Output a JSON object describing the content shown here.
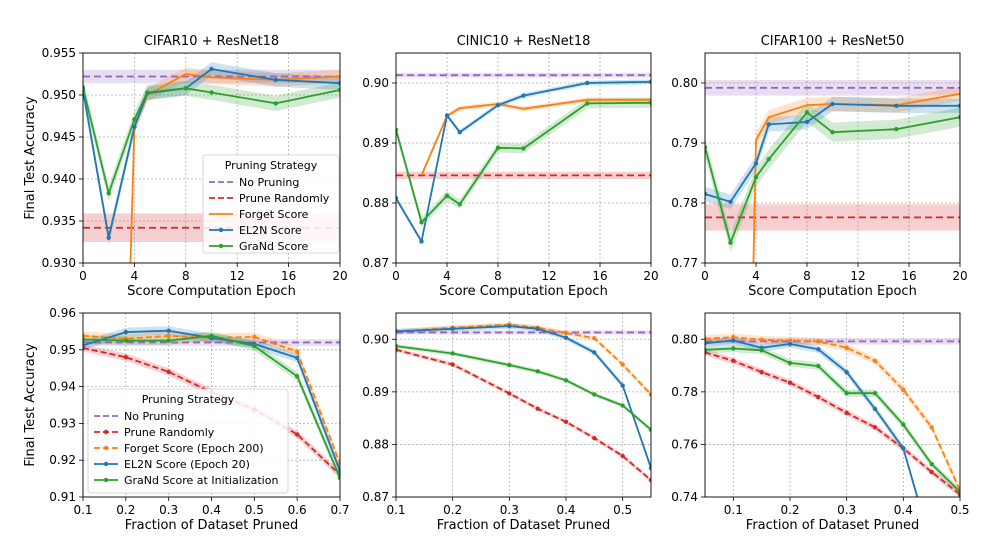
{
  "figure": {
    "strategies": {
      "none": {
        "color": "#9467bd",
        "dash": "7,4"
      },
      "random": {
        "color": "#d62728",
        "dash": "7,4"
      },
      "forget": {
        "color": "#ff7f0e"
      },
      "el2n": {
        "color": "#1f77b4"
      },
      "grand": {
        "color": "#2ca02c"
      }
    }
  },
  "chart_data": [
    {
      "type": "line",
      "title": "CIFAR10 + ResNet18",
      "xlabel": "Score Computation Epoch",
      "ylabel": "Final Test Accuracy",
      "xlim": [
        0,
        20
      ],
      "ylim": [
        0.93,
        0.955
      ],
      "xticks": [
        0,
        4,
        8,
        12,
        16,
        20
      ],
      "xtick_labels": [
        "0",
        "4",
        "8",
        "12",
        "16",
        "20"
      ],
      "yticks": [
        0.93,
        0.935,
        0.94,
        0.945,
        0.95,
        0.955
      ],
      "ytick_labels": [
        "0.930",
        "0.935",
        "0.940",
        "0.945",
        "0.950",
        "0.955"
      ],
      "grid": true,
      "legend": {
        "title": "Pruning Strategy",
        "position": "center-right",
        "entries": [
          {
            "label": "No Pruning",
            "key": "none"
          },
          {
            "label": "Prune Randomly",
            "key": "random"
          },
          {
            "label": "Forget Score",
            "key": "forget"
          },
          {
            "label": "EL2N Score",
            "key": "el2n"
          },
          {
            "label": "GraNd Score",
            "key": "grand"
          }
        ]
      },
      "series": [
        {
          "key": "none",
          "hline": 0.9522,
          "band": 0.0008
        },
        {
          "key": "random",
          "hline": 0.9342,
          "band": 0.0017
        },
        {
          "key": "forget",
          "x": [
            3.6,
            4,
            5,
            8,
            10,
            15,
            20
          ],
          "y": [
            0.925,
            0.9462,
            0.95,
            0.9525,
            0.9521,
            0.9518,
            0.9522
          ],
          "band": 0.0008
        },
        {
          "key": "el2n",
          "marker": true,
          "x": [
            0,
            2,
            4,
            5,
            8,
            10,
            15,
            20
          ],
          "y": [
            0.9506,
            0.933,
            0.9462,
            0.9502,
            0.9508,
            0.9531,
            0.9518,
            0.9514
          ],
          "band": 0.0008
        },
        {
          "key": "grand",
          "marker": true,
          "x": [
            0,
            2,
            4,
            5,
            8,
            10,
            15,
            20
          ],
          "y": [
            0.9509,
            0.9383,
            0.9471,
            0.9503,
            0.9508,
            0.9503,
            0.949,
            0.9506
          ],
          "band": 0.0009
        }
      ]
    },
    {
      "type": "line",
      "title": "CINIC10 + ResNet18",
      "xlabel": "Score Computation Epoch",
      "ylabel": "",
      "xlim": [
        0,
        20
      ],
      "ylim": [
        0.87,
        0.905
      ],
      "xticks": [
        0,
        4,
        8,
        12,
        16,
        20
      ],
      "xtick_labels": [
        "0",
        "4",
        "8",
        "12",
        "16",
        "20"
      ],
      "yticks": [
        0.87,
        0.88,
        0.89,
        0.9
      ],
      "ytick_labels": [
        "0.87",
        "0.88",
        "0.89",
        "0.90"
      ],
      "grid": true,
      "series": [
        {
          "key": "none",
          "hline": 0.9013,
          "band": 0.0004
        },
        {
          "key": "random",
          "hline": 0.8846,
          "band": 0.0006
        },
        {
          "key": "forget",
          "x": [
            2,
            4,
            5,
            8,
            10,
            15,
            20
          ],
          "y": [
            0.8846,
            0.8945,
            0.8958,
            0.8965,
            0.8957,
            0.8972,
            0.8972
          ],
          "band": 0.0004
        },
        {
          "key": "el2n",
          "marker": true,
          "x": [
            0,
            2,
            4,
            5,
            8,
            10,
            15,
            20
          ],
          "y": [
            0.8808,
            0.8736,
            0.8946,
            0.8918,
            0.8963,
            0.8979,
            0.9,
            0.9002
          ],
          "band": 0.0004
        },
        {
          "key": "grand",
          "marker": true,
          "x": [
            0,
            2,
            4,
            5,
            8,
            10,
            15,
            20
          ],
          "y": [
            0.8922,
            0.8768,
            0.8812,
            0.8798,
            0.8892,
            0.8891,
            0.8966,
            0.8967
          ],
          "band": 0.0008
        }
      ]
    },
    {
      "type": "line",
      "title": "CIFAR100 + ResNet50",
      "xlabel": "Score Computation Epoch",
      "ylabel": "",
      "xlim": [
        0,
        20
      ],
      "ylim": [
        0.77,
        0.805
      ],
      "xticks": [
        0,
        4,
        8,
        12,
        16,
        20
      ],
      "xtick_labels": [
        "0",
        "4",
        "8",
        "12",
        "16",
        "20"
      ],
      "yticks": [
        0.77,
        0.78,
        0.79,
        0.8
      ],
      "ytick_labels": [
        "0.77",
        "0.78",
        "0.79",
        "0.80"
      ],
      "grid": true,
      "series": [
        {
          "key": "none",
          "hline": 0.7992,
          "band": 0.0013
        },
        {
          "key": "random",
          "hline": 0.7776,
          "band": 0.0022
        },
        {
          "key": "forget",
          "x": [
            3.7,
            4,
            5,
            8,
            10,
            15,
            20
          ],
          "y": [
            0.76,
            0.7905,
            0.7943,
            0.7963,
            0.7965,
            0.7963,
            0.7982
          ],
          "band": 0.0012
        },
        {
          "key": "el2n",
          "marker": true,
          "x": [
            0,
            2,
            4,
            5,
            8,
            10,
            15,
            20
          ],
          "y": [
            0.7815,
            0.7802,
            0.7866,
            0.7931,
            0.7935,
            0.7965,
            0.7962,
            0.7962
          ],
          "band": 0.0012
        },
        {
          "key": "grand",
          "marker": true,
          "x": [
            0,
            2,
            4,
            5,
            8,
            10,
            15,
            20
          ],
          "y": [
            0.7893,
            0.7734,
            0.7843,
            0.7873,
            0.7951,
            0.7918,
            0.7923,
            0.7943
          ],
          "band": 0.0016
        }
      ]
    },
    {
      "type": "line",
      "title": "",
      "xlabel": "Fraction of Dataset Pruned",
      "ylabel": "Final Test Accuracy",
      "xlim": [
        0.1,
        0.7
      ],
      "ylim": [
        0.91,
        0.96
      ],
      "xticks": [
        0.1,
        0.2,
        0.3,
        0.4,
        0.5,
        0.6,
        0.7
      ],
      "xtick_labels": [
        "0.1",
        "0.2",
        "0.3",
        "0.4",
        "0.5",
        "0.6",
        "0.7"
      ],
      "yticks": [
        0.91,
        0.92,
        0.93,
        0.94,
        0.95,
        0.96
      ],
      "ytick_labels": [
        "0.91",
        "0.92",
        "0.93",
        "0.94",
        "0.95",
        "0.96"
      ],
      "grid": true,
      "legend": {
        "title": "Pruning Strategy",
        "position": "lower-left",
        "entries": [
          {
            "label": "No Pruning",
            "key": "none"
          },
          {
            "label": "Prune Randomly",
            "key": "random"
          },
          {
            "label": "Forget Score (Epoch 200)",
            "key": "forget"
          },
          {
            "label": "EL2N Score (Epoch 20)",
            "key": "el2n"
          },
          {
            "label": "GraNd Score at Initialization",
            "key": "grand"
          }
        ]
      },
      "series": [
        {
          "key": "none",
          "hline": 0.952,
          "band": 0.0009
        },
        {
          "key": "random",
          "marker": true,
          "dashed": true,
          "x": [
            0.1,
            0.2,
            0.3,
            0.4,
            0.5,
            0.6,
            0.7
          ],
          "y": [
            0.9505,
            0.948,
            0.944,
            0.9385,
            0.9338,
            0.927,
            0.916
          ],
          "band": 0.001
        },
        {
          "key": "forget",
          "marker": true,
          "dashed": true,
          "x": [
            0.1,
            0.2,
            0.3,
            0.4,
            0.5,
            0.6,
            0.7
          ],
          "y": [
            0.9538,
            0.953,
            0.9538,
            0.9532,
            0.9535,
            0.9495,
            0.919
          ],
          "band": 0.0012
        },
        {
          "key": "el2n",
          "marker": true,
          "x": [
            0.1,
            0.2,
            0.3,
            0.4,
            0.5,
            0.6,
            0.7
          ],
          "y": [
            0.9512,
            0.9548,
            0.9552,
            0.9532,
            0.9516,
            0.9478,
            0.917
          ],
          "band": 0.0012
        },
        {
          "key": "grand",
          "marker": true,
          "x": [
            0.1,
            0.2,
            0.3,
            0.4,
            0.5,
            0.6,
            0.7
          ],
          "y": [
            0.9528,
            0.9525,
            0.9525,
            0.9538,
            0.951,
            0.9428,
            0.9152
          ],
          "band": 0.0012
        }
      ]
    },
    {
      "type": "line",
      "title": "",
      "xlabel": "Fraction of Dataset Pruned",
      "ylabel": "",
      "xlim": [
        0.1,
        0.55
      ],
      "ylim": [
        0.87,
        0.905
      ],
      "xticks": [
        0.1,
        0.2,
        0.3,
        0.4,
        0.5
      ],
      "xtick_labels": [
        "0.1",
        "0.2",
        "0.3",
        "0.4",
        "0.5"
      ],
      "yticks": [
        0.87,
        0.88,
        0.89,
        0.9
      ],
      "ytick_labels": [
        "0.87",
        "0.88",
        "0.89",
        "0.90"
      ],
      "grid": true,
      "series": [
        {
          "key": "none",
          "hline": 0.9013,
          "band": 0.0004
        },
        {
          "key": "random",
          "marker": true,
          "dashed": true,
          "x": [
            0.1,
            0.2,
            0.3,
            0.35,
            0.4,
            0.45,
            0.5,
            0.55
          ],
          "y": [
            0.898,
            0.8952,
            0.8897,
            0.8868,
            0.8843,
            0.8812,
            0.8778,
            0.8732
          ],
          "band": 0.0004
        },
        {
          "key": "forget",
          "marker": true,
          "dashed": true,
          "x": [
            0.1,
            0.2,
            0.3,
            0.35,
            0.4,
            0.45,
            0.5,
            0.55
          ],
          "y": [
            0.9015,
            0.9022,
            0.9028,
            0.9022,
            0.9012,
            0.9002,
            0.8952,
            0.8895
          ],
          "band": 0.0004
        },
        {
          "key": "el2n",
          "marker": true,
          "x": [
            0.1,
            0.2,
            0.3,
            0.35,
            0.4,
            0.45,
            0.5,
            0.55
          ],
          "y": [
            0.9015,
            0.902,
            0.9025,
            0.902,
            0.9003,
            0.8975,
            0.8912,
            0.8755
          ],
          "band": 0.0005
        },
        {
          "key": "grand",
          "marker": true,
          "x": [
            0.1,
            0.2,
            0.3,
            0.35,
            0.4,
            0.45,
            0.5,
            0.55
          ],
          "y": [
            0.8987,
            0.8973,
            0.8951,
            0.8939,
            0.8922,
            0.8895,
            0.8874,
            0.8828
          ],
          "band": 0.0004
        }
      ]
    },
    {
      "type": "line",
      "title": "",
      "xlabel": "Fraction of Dataset Pruned",
      "ylabel": "",
      "xlim": [
        0.05,
        0.5
      ],
      "ylim": [
        0.74,
        0.81
      ],
      "xticks": [
        0.1,
        0.2,
        0.3,
        0.4,
        0.5
      ],
      "xtick_labels": [
        "0.1",
        "0.2",
        "0.3",
        "0.4",
        "0.5"
      ],
      "yticks": [
        0.74,
        0.76,
        0.78,
        0.8
      ],
      "ytick_labels": [
        "0.74",
        "0.76",
        "0.78",
        "0.80"
      ],
      "grid": true,
      "series": [
        {
          "key": "none",
          "hline": 0.7992,
          "band": 0.0012
        },
        {
          "key": "random",
          "marker": true,
          "dashed": true,
          "x": [
            0.05,
            0.1,
            0.15,
            0.2,
            0.25,
            0.3,
            0.35,
            0.4,
            0.45,
            0.5
          ],
          "y": [
            0.795,
            0.7918,
            0.7875,
            0.7835,
            0.778,
            0.772,
            0.7665,
            0.7585,
            0.7495,
            0.741
          ],
          "band": 0.0012
        },
        {
          "key": "forget",
          "marker": true,
          "dashed": true,
          "x": [
            0.05,
            0.1,
            0.15,
            0.2,
            0.25,
            0.3,
            0.35,
            0.4,
            0.45,
            0.5
          ],
          "y": [
            0.8002,
            0.8008,
            0.7998,
            0.7995,
            0.7992,
            0.7968,
            0.7918,
            0.7808,
            0.7665,
            0.7425
          ],
          "band": 0.0014
        },
        {
          "key": "el2n",
          "marker": true,
          "x": [
            0.05,
            0.1,
            0.15,
            0.2,
            0.25,
            0.3,
            0.35,
            0.4,
            0.43
          ],
          "y": [
            0.7985,
            0.7995,
            0.7968,
            0.7982,
            0.7962,
            0.7875,
            0.7735,
            0.7585,
            0.736
          ],
          "band": 0.0014
        },
        {
          "key": "grand",
          "marker": true,
          "x": [
            0.05,
            0.1,
            0.15,
            0.2,
            0.25,
            0.3,
            0.35,
            0.4,
            0.45,
            0.5
          ],
          "y": [
            0.796,
            0.7965,
            0.7958,
            0.791,
            0.7898,
            0.7795,
            0.7795,
            0.7675,
            0.7525,
            0.742
          ],
          "band": 0.0014
        }
      ]
    }
  ]
}
